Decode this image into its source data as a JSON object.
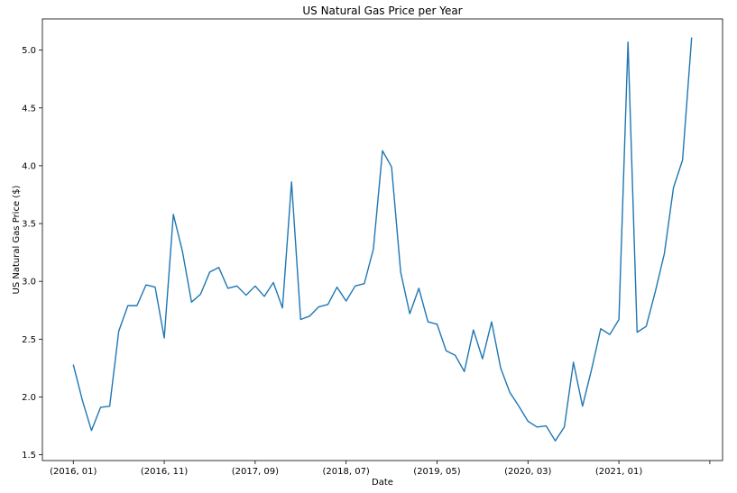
{
  "chart_data": {
    "type": "line",
    "title": "US Natural Gas Price per Year",
    "xlabel": "Date",
    "ylabel": "US Natural Gas Price ($)",
    "ylim": [
      1.45,
      5.27
    ],
    "grid": false,
    "y_ticks": [
      1.5,
      2.0,
      2.5,
      3.0,
      3.5,
      4.0,
      4.5,
      5.0
    ],
    "y_tick_labels": [
      "1.5",
      "2.0",
      "2.5",
      "3.0",
      "3.5",
      "4.0",
      "4.5",
      "5.0"
    ],
    "x_tick_labels": [
      "(2016, 01)",
      "(2016, 11)",
      "(2017, 09)",
      "(2018, 07)",
      "(2019, 05)",
      "(2020, 03)",
      "(2021, 01)",
      ""
    ],
    "x_tick_dates": [
      "2016-01",
      "2016-11",
      "2017-09",
      "2018-07",
      "2019-05",
      "2020-03",
      "2021-01",
      "2021-11"
    ],
    "x": [
      "2016-01",
      "2016-02",
      "2016-03",
      "2016-04",
      "2016-05",
      "2016-06",
      "2016-07",
      "2016-08",
      "2016-09",
      "2016-10",
      "2016-11",
      "2016-12",
      "2017-01",
      "2017-02",
      "2017-03",
      "2017-04",
      "2017-05",
      "2017-06",
      "2017-07",
      "2017-08",
      "2017-09",
      "2017-10",
      "2017-11",
      "2017-12",
      "2018-01",
      "2018-02",
      "2018-03",
      "2018-04",
      "2018-05",
      "2018-06",
      "2018-07",
      "2018-08",
      "2018-09",
      "2018-10",
      "2018-11",
      "2018-12",
      "2019-01",
      "2019-02",
      "2019-03",
      "2019-04",
      "2019-05",
      "2019-06",
      "2019-07",
      "2019-08",
      "2019-09",
      "2019-10",
      "2019-11",
      "2019-12",
      "2020-01",
      "2020-02",
      "2020-03",
      "2020-04",
      "2020-05",
      "2020-06",
      "2020-07",
      "2020-08",
      "2020-09",
      "2020-10",
      "2020-11",
      "2020-12",
      "2021-01",
      "2021-02",
      "2021-03",
      "2021-04",
      "2021-05",
      "2021-06",
      "2021-07",
      "2021-08",
      "2021-09"
    ],
    "series": [
      {
        "color": "#1f77b4",
        "values": [
          2.28,
          1.97,
          1.71,
          1.91,
          1.92,
          2.57,
          2.79,
          2.79,
          2.97,
          2.95,
          2.51,
          3.58,
          3.26,
          2.82,
          2.89,
          3.08,
          3.12,
          2.94,
          2.96,
          2.88,
          2.96,
          2.87,
          2.99,
          2.77,
          3.86,
          2.67,
          2.7,
          2.78,
          2.8,
          2.95,
          2.83,
          2.96,
          2.98,
          3.28,
          4.13,
          3.99,
          3.08,
          2.72,
          2.94,
          2.65,
          2.63,
          2.4,
          2.36,
          2.22,
          2.58,
          2.33,
          2.65,
          2.25,
          2.04,
          1.92,
          1.79,
          1.74,
          1.75,
          1.62,
          1.74,
          2.3,
          1.92,
          2.24,
          2.59,
          2.54,
          2.67,
          5.07,
          2.56,
          2.61,
          2.91,
          3.24,
          3.81,
          4.05,
          5.11
        ]
      }
    ]
  }
}
